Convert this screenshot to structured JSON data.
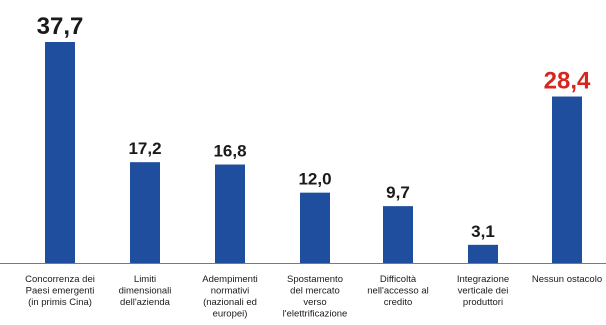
{
  "chart_data": {
    "type": "bar",
    "categories": [
      [
        "Concorrenza dei",
        "Paesi emergenti",
        "(in primis Cina)"
      ],
      [
        "Limiti",
        "dimensionali",
        "dell'azienda"
      ],
      [
        "Adempimenti",
        "normativi",
        "(nazionali ed",
        "europei)"
      ],
      [
        "Spostamento",
        "del mercato",
        "verso",
        "l'elettrificazione"
      ],
      [
        "Difficoltà",
        "nell'accesso al",
        "credito"
      ],
      [
        "Integrazione",
        "verticale dei",
        "produttori"
      ],
      [
        "Nessun ostacolo"
      ]
    ],
    "value_labels": [
      "37,7",
      "17,2",
      "16,8",
      "12,0",
      "9,7",
      "3,1",
      "28,4"
    ],
    "values": [
      37.7,
      17.2,
      16.8,
      12.0,
      9.7,
      3.1,
      28.4
    ],
    "ylim": [
      0,
      40
    ],
    "grid": false,
    "legend": "none",
    "colors": {
      "bar": "#1f4e9e",
      "baseline": "#7a7a7a",
      "value_label": "#1a1a1a",
      "highlight_label": "#d7261e",
      "category_label": "#1a1a1a"
    },
    "highlight_index": 6
  }
}
